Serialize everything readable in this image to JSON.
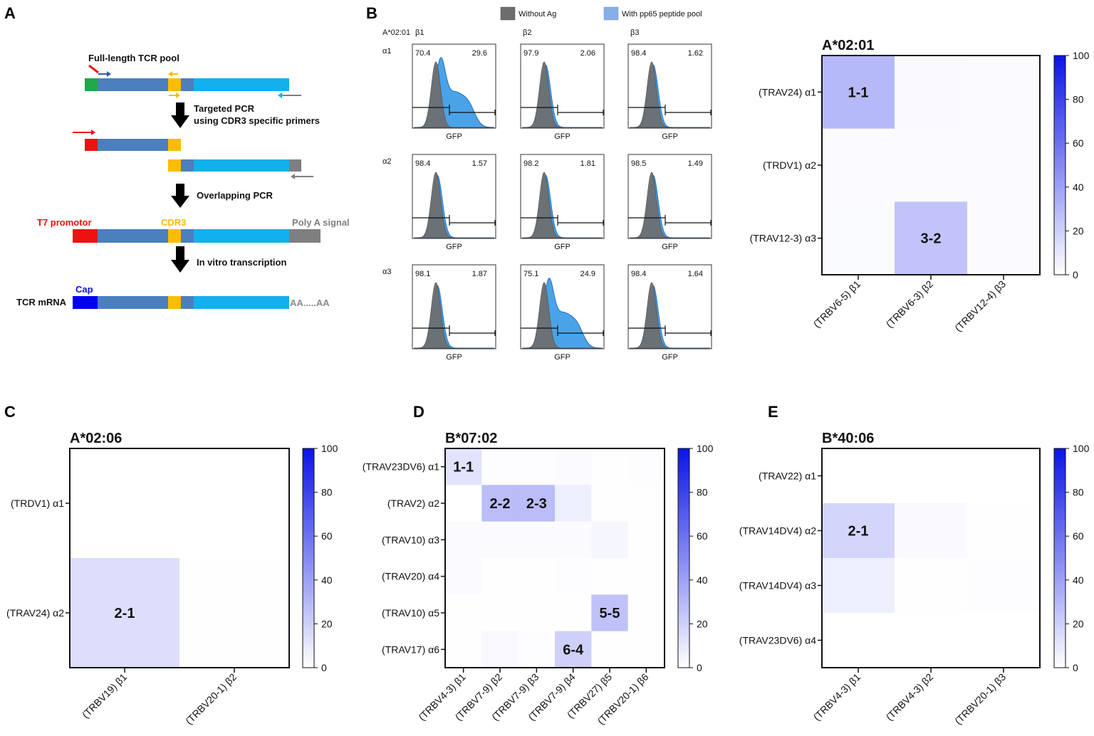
{
  "panels": {
    "A": "A",
    "B": "B",
    "C": "C",
    "D": "D",
    "E": "E"
  },
  "panelA": {
    "full_length": "Full-length TCR pool",
    "step1": "Targeted PCR",
    "step1b": "using CDR3 specific primers",
    "step2": "Overlapping PCR",
    "t7": "T7 promotor",
    "cdr3": "CDR3",
    "polya": "Poly A signal",
    "step3": "In vitro transcription",
    "cap": "Cap",
    "mrna": "TCR mRNA",
    "aa": "AA.....AA"
  },
  "colors": {
    "teal": "#4b7fbd",
    "cyan": "#12b0ec",
    "yellow": "#fbbc05",
    "green": "#1da84a",
    "red": "#ee1111",
    "gray": "#7f7f7f",
    "blue": "#0000ee",
    "hist_gray": "#6d6d6d",
    "hist_blue": "#4aa3e8",
    "legend_blue": "#86aee8"
  },
  "panelB": {
    "legend": {
      "without": "Without Ag",
      "with": "With pp65 peptide pool"
    },
    "allele": "A*02:01",
    "cols": [
      "β1",
      "β2",
      "β3"
    ],
    "rows": [
      "α1",
      "α2",
      "α3"
    ],
    "xlabel": "GFP",
    "cells": [
      {
        "left": "70.4",
        "right": "29.6",
        "shift": 1
      },
      {
        "left": "97.9",
        "right": "2.06",
        "shift": 0
      },
      {
        "left": "98.4",
        "right": "1.62",
        "shift": 0
      },
      {
        "left": "98.4",
        "right": "1.57",
        "shift": 0
      },
      {
        "left": "98.2",
        "right": "1.81",
        "shift": 0
      },
      {
        "left": "98.5",
        "right": "1.49",
        "shift": 0
      },
      {
        "left": "98.1",
        "right": "1.87",
        "shift": 0
      },
      {
        "left": "75.1",
        "right": "24.9",
        "shift": 1
      },
      {
        "left": "98.4",
        "right": "1.64",
        "shift": 0
      }
    ]
  },
  "chart_data": [
    {
      "type": "heatmap",
      "title": "A*02:01",
      "rows": [
        "(TRAV24) α1",
        "(TRDV1) α2",
        "(TRAV12-3) α3"
      ],
      "cols": [
        "(TRBV6-5) β1",
        "(TRBV6-3) β2",
        "(TRBV12-4) β3"
      ],
      "values": [
        [
          29.6,
          2.06,
          1.62
        ],
        [
          1.57,
          1.81,
          1.49
        ],
        [
          1.87,
          24.9,
          1.64
        ]
      ],
      "labels": [
        [
          "1-1",
          "",
          ""
        ],
        [
          "",
          "",
          ""
        ],
        [
          "",
          "3-2",
          ""
        ]
      ],
      "colorbar": {
        "range": [
          0,
          100
        ],
        "ticks": [
          "100",
          "80",
          "60",
          "40",
          "20",
          "0"
        ]
      }
    },
    {
      "type": "heatmap",
      "title": "A*02:06",
      "rows": [
        "(TRDV1) α1",
        "(TRAV24) α2"
      ],
      "cols": [
        "(TRBV19) β1",
        "(TRBV20-1) β2"
      ],
      "values": [
        [
          0,
          0
        ],
        [
          14,
          0.5
        ]
      ],
      "labels": [
        [
          "",
          ""
        ],
        [
          "2-1",
          ""
        ]
      ],
      "colorbar": {
        "range": [
          0,
          100
        ],
        "ticks": [
          "100",
          "80",
          "60",
          "40",
          "20",
          "0"
        ]
      }
    },
    {
      "type": "heatmap",
      "title": "B*07:02",
      "rows": [
        "(TRAV23DV6) α1",
        "(TRAV2) α2",
        "(TRAV10) α3",
        "(TRAV20) α4",
        "(TRAV10) α5",
        "(TRAV17) α6"
      ],
      "cols": [
        "(TRBV4-3) β1",
        "(TRBV7-9) β2",
        "(TRBV7-9) β3",
        "(TRBV7-9) β4",
        "(TRBV27) β5",
        "(TRBV20-1) β6"
      ],
      "values": [
        [
          12,
          1,
          1,
          2,
          0.5,
          1
        ],
        [
          0,
          28,
          28,
          7,
          0.5,
          0.5
        ],
        [
          1.5,
          1.5,
          1.5,
          1.5,
          4,
          0.5
        ],
        [
          1.5,
          0.5,
          0.5,
          1,
          0.5,
          0.5
        ],
        [
          0.5,
          0.5,
          0.5,
          0.5,
          26,
          0.5
        ],
        [
          0.5,
          3,
          1,
          20,
          0.5,
          0.5
        ]
      ],
      "labels": [
        [
          "1-1",
          "",
          "",
          "",
          "",
          ""
        ],
        [
          "",
          "2-2",
          "2-3",
          "",
          "",
          ""
        ],
        [
          "",
          "",
          "",
          "",
          "",
          ""
        ],
        [
          "",
          "",
          "",
          "",
          "",
          ""
        ],
        [
          "",
          "",
          "",
          "",
          "5-5",
          ""
        ],
        [
          "",
          "",
          "",
          "6-4",
          "",
          ""
        ]
      ],
      "colorbar": {
        "range": [
          0,
          100
        ],
        "ticks": [
          "100",
          "80",
          "60",
          "40",
          "20",
          "0"
        ]
      }
    },
    {
      "type": "heatmap",
      "title": "B*40:06",
      "rows": [
        "(TRAV22) α1",
        "(TRAV14DV4) α2",
        "(TRAV14DV4) α3",
        "(TRAV23DV6) α4"
      ],
      "cols": [
        "(TRBV4-3) β1",
        "(TRBV4-3) β2",
        "(TRBV20-1) β3"
      ],
      "values": [
        [
          0,
          0,
          0
        ],
        [
          18,
          2.5,
          0.5
        ],
        [
          7,
          0.5,
          1
        ],
        [
          0,
          0,
          0
        ]
      ],
      "labels": [
        [
          "",
          "",
          ""
        ],
        [
          "2-1",
          "",
          ""
        ],
        [
          "",
          "",
          ""
        ],
        [
          "",
          "",
          ""
        ]
      ],
      "colorbar": {
        "range": [
          0,
          100
        ],
        "ticks": [
          "100",
          "80",
          "60",
          "40",
          "20",
          "0"
        ]
      }
    }
  ]
}
